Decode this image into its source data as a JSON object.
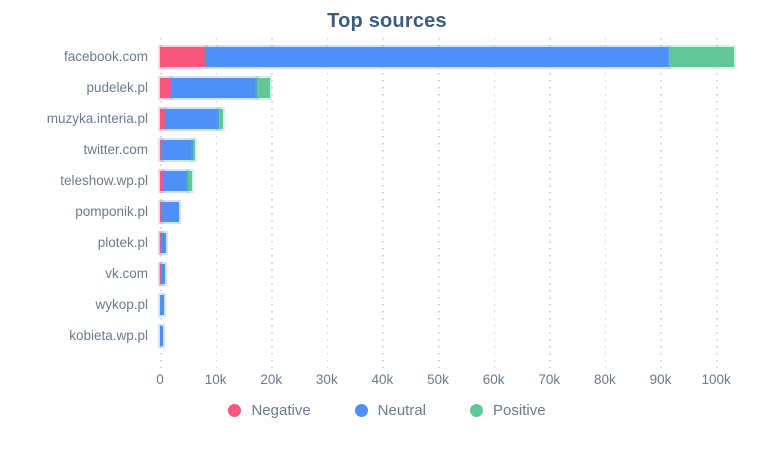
{
  "colors": {
    "title_text": "#3E5C7D",
    "axis_text": "#6C7A8E",
    "grid_dots": "#D2D3D8",
    "negative": "#F7577C",
    "neutral": "#4D90F8",
    "positive": "#62C899"
  },
  "chart_data": {
    "type": "bar",
    "orientation": "horizontal",
    "stacked": true,
    "title": "Top sources",
    "grid": "dotted-vertical",
    "legend_position": "bottom",
    "categories": [
      "facebook.com",
      "pudelek.pl",
      "muzyka.interia.pl",
      "twitter.com",
      "teleshow.wp.pl",
      "pomponik.pl",
      "plotek.pl",
      "vk.com",
      "wykop.pl",
      "kobieta.wp.pl"
    ],
    "series": [
      {
        "name": "Negative",
        "color": "#F7577C",
        "values": [
          8200,
          2000,
          900,
          300,
          600,
          300,
          150,
          100,
          0,
          0
        ]
      },
      {
        "name": "Neutral",
        "color": "#4D90F8",
        "values": [
          83300,
          15400,
          9700,
          5600,
          4500,
          3200,
          950,
          750,
          650,
          550
        ]
      },
      {
        "name": "Positive",
        "color": "#62C899",
        "values": [
          11700,
          2300,
          800,
          450,
          650,
          0,
          0,
          0,
          0,
          0
        ]
      }
    ],
    "x_axis": {
      "max": 104300,
      "ticks": [
        {
          "value": 0,
          "label": "0"
        },
        {
          "value": 10000,
          "label": "10k"
        },
        {
          "value": 20000,
          "label": "20k"
        },
        {
          "value": 30000,
          "label": "30k"
        },
        {
          "value": 40000,
          "label": "40k"
        },
        {
          "value": 50000,
          "label": "50k"
        },
        {
          "value": 60000,
          "label": "60k"
        },
        {
          "value": 70000,
          "label": "70k"
        },
        {
          "value": 80000,
          "label": "80k"
        },
        {
          "value": 90000,
          "label": "90k"
        },
        {
          "value": 100000,
          "label": "100k"
        }
      ]
    }
  }
}
